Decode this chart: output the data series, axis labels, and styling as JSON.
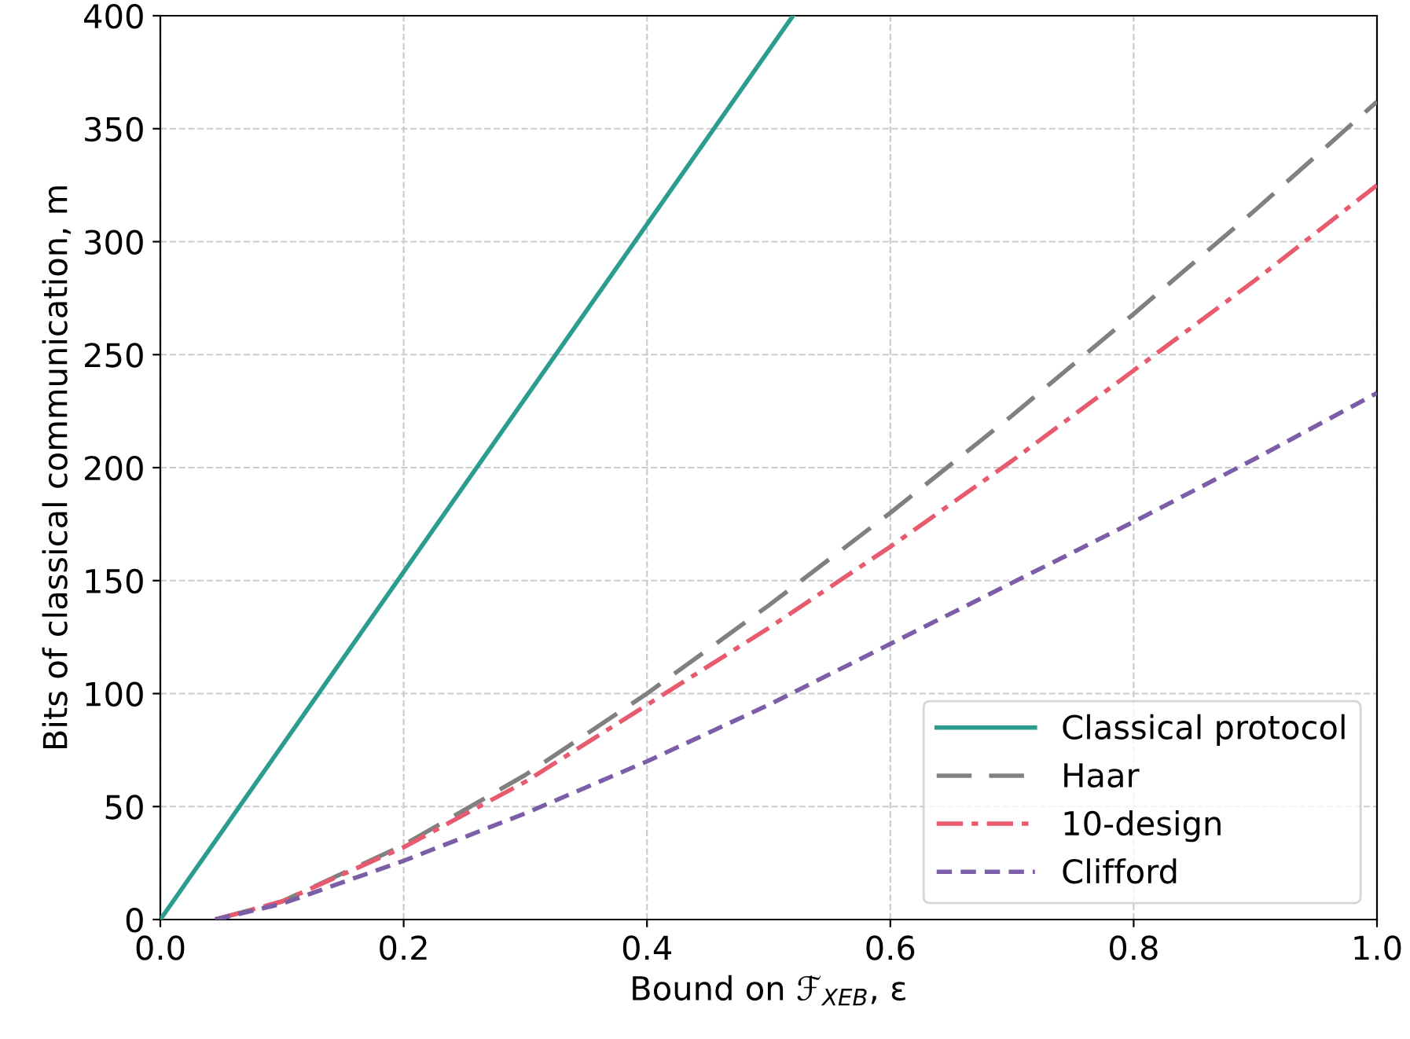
{
  "chart_data": {
    "type": "line",
    "xlabel": "Bound on ℱ$_{XEB}$, ε",
    "ylabel": "Bits of classical communication, m",
    "xlim": [
      0,
      1
    ],
    "ylim": [
      0,
      400
    ],
    "xticks": [
      {
        "value": 0,
        "label": "0.0"
      },
      0.2,
      0.4,
      0.6,
      0.8,
      {
        "value": 1,
        "label": "1.0"
      }
    ],
    "yticks": [
      0,
      50,
      100,
      150,
      200,
      250,
      300,
      350,
      400
    ],
    "grid": true,
    "legend": "bottom right",
    "series": [
      {
        "name": "Classical protocol",
        "color": "#2a9d8f",
        "line_style": "solid",
        "x": [
          0,
          0.52
        ],
        "values": [
          0,
          400
        ]
      },
      {
        "name": "Haar",
        "color": "#808080",
        "line_style": "longdash",
        "x": [
          0.045,
          0.1,
          0.2,
          0.3,
          0.4,
          0.5,
          0.6,
          0.7,
          0.8,
          0.9,
          1.0
        ],
        "values": [
          0,
          8,
          33,
          64,
          100,
          139,
          180,
          223,
          268,
          314,
          362
        ]
      },
      {
        "name": "10-design",
        "color": "#e85a6e",
        "line_style": "dashdot",
        "x": [
          0.045,
          0.1,
          0.2,
          0.3,
          0.4,
          0.5,
          0.6,
          0.7,
          0.8,
          0.9,
          1.0
        ],
        "values": [
          0,
          8,
          32,
          61,
          95,
          129,
          165,
          203,
          243,
          283,
          325
        ]
      },
      {
        "name": "Clifford",
        "color": "#7b5ea7",
        "line_style": "dashed",
        "x": [
          0.045,
          0.1,
          0.2,
          0.3,
          0.4,
          0.5,
          0.6,
          0.7,
          0.8,
          0.9,
          1.0
        ],
        "values": [
          0,
          7,
          26,
          47,
          70,
          95,
          122,
          149,
          176,
          204,
          233
        ]
      }
    ]
  }
}
